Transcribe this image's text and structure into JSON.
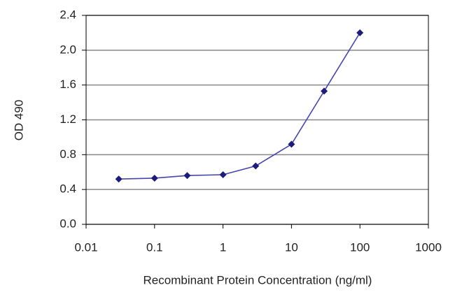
{
  "chart_data": {
    "type": "line",
    "x_label": "Recombinant Protein Concentration (ng/ml)",
    "y_label": "OD 490",
    "x": [
      0.03,
      0.1,
      0.3,
      1,
      3,
      10,
      30,
      100
    ],
    "series": [
      {
        "color": "#4444b0",
        "marker_color": "#1c1c7a",
        "values": [
          0.52,
          0.53,
          0.56,
          0.57,
          0.67,
          0.92,
          1.53,
          2.2
        ]
      }
    ],
    "xlim": [
      0.01,
      1000
    ],
    "xscale": "log",
    "xticks": [
      0.01,
      0.1,
      1,
      10,
      100,
      1000
    ],
    "ylim": [
      0,
      2.4
    ],
    "yticks": [
      {
        "value": 0,
        "label": "0.0"
      },
      0.4,
      0.8,
      1.2,
      1.6,
      {
        "value": 2,
        "label": "2.0"
      },
      2.4
    ],
    "grid": true
  }
}
